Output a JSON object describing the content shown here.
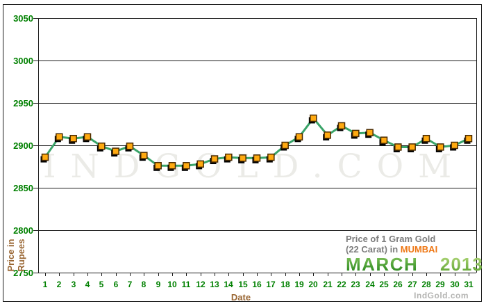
{
  "watermark": "IndGold.COM",
  "brand": "IndGold.com",
  "legend": {
    "line1": "Price of 1 Gram Gold",
    "line2": "(22 Carat) in ",
    "city": "MUMBAI",
    "month": "MARCH",
    "year": "2013",
    "city_color": "#ee7613",
    "month_gradient": [
      "#8bc961",
      "#1d7f16"
    ],
    "year_gradient": [
      "#b8da7e",
      "#55a02c"
    ]
  },
  "chart_data": {
    "type": "line",
    "title": "Price of 1 Gram Gold (22 Carat) in MUMBAI - MARCH 2013",
    "xlabel": "Date",
    "ylabel_lines": [
      "Price in",
      "Rupees"
    ],
    "ylim": [
      2750,
      3050
    ],
    "yticks": [
      2750,
      2800,
      2850,
      2900,
      2950,
      3000,
      3050
    ],
    "grid": true,
    "legend_position": "bottom-right inside",
    "x": [
      1,
      2,
      3,
      4,
      5,
      6,
      7,
      8,
      9,
      10,
      11,
      12,
      13,
      14,
      15,
      16,
      17,
      18,
      19,
      20,
      21,
      22,
      23,
      24,
      25,
      26,
      27,
      28,
      29,
      30,
      31
    ],
    "values": [
      2886,
      2910,
      2908,
      2910,
      2899,
      2893,
      2899,
      2888,
      2876,
      2876,
      2876,
      2878,
      2884,
      2886,
      2885,
      2885,
      2886,
      2900,
      2910,
      2932,
      2912,
      2923,
      2914,
      2915,
      2906,
      2898,
      2898,
      2908,
      2898,
      2900,
      2908
    ],
    "line_color": "#3aa469",
    "marker_fill": "#ffaa11",
    "marker_border": "#4a2a00",
    "marker_shadow": "#000000",
    "axis_color": "#1c1c1c",
    "tick_label_color": "#008000",
    "axis_title_color": "#996633"
  }
}
